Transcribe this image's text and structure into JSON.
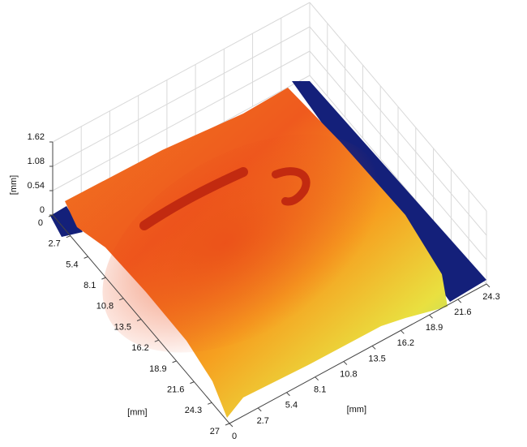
{
  "chart_data": {
    "type": "surface",
    "xlabel": "[mm]",
    "ylabel": "[mm]",
    "zlabel": "[mm]",
    "xlim": [
      0,
      24.3
    ],
    "xticks": [
      0,
      2.7,
      5.4,
      8.1,
      10.8,
      13.5,
      16.2,
      18.9,
      21.6,
      24.3
    ],
    "ylim": [
      0,
      27
    ],
    "yticks": [
      0,
      2.7,
      5.4,
      8.1,
      10.8,
      13.5,
      16.2,
      18.9,
      21.6,
      24.3,
      27
    ],
    "zlim": [
      0,
      1.62
    ],
    "zticks": [
      0,
      0.54,
      1.08,
      1.62
    ],
    "grid": true
  }
}
